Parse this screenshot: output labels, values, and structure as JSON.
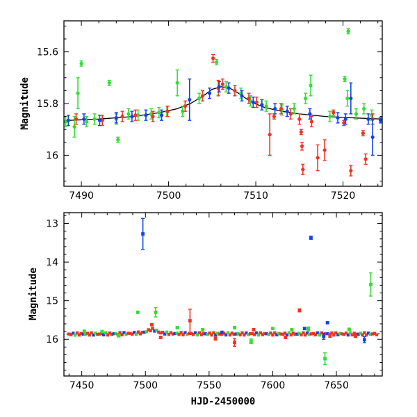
{
  "colors": {
    "green": "#33dd33",
    "red": "#ee3322",
    "blue": "#1144ee",
    "model": "#000000",
    "frame": "#000000"
  },
  "chart_data": [
    {
      "type": "scatter",
      "panel": "top",
      "xlabel": "",
      "ylabel": "Magnitude",
      "xlim": [
        7488,
        7524.5
      ],
      "ylim": [
        16.12,
        15.48
      ],
      "y_inverted": true,
      "xticks": [
        7490,
        7500,
        7510,
        7520
      ],
      "xtick_labels": [
        "7490",
        "7500",
        "7510",
        "7520"
      ],
      "yticks": [
        15.6,
        15.8,
        16.0
      ],
      "ytick_labels": [
        "15.6",
        "15.8",
        "16"
      ],
      "model_curve": {
        "color": "model",
        "x": [
          7488.5,
          7492,
          7496,
          7499,
          7501,
          7502.5,
          7504,
          7505,
          7506,
          7507,
          7508,
          7509.5,
          7511,
          7513,
          7515,
          7518,
          7521,
          7524.5
        ],
        "y": [
          15.865,
          15.86,
          15.85,
          15.835,
          15.82,
          15.8,
          15.77,
          15.745,
          15.735,
          15.74,
          15.76,
          15.795,
          15.815,
          15.83,
          15.84,
          15.85,
          15.855,
          15.86
        ]
      },
      "series": [
        {
          "color": "green",
          "points": [
            {
              "x": 7488.2,
              "y": 15.87,
              "err": 0.02
            },
            {
              "x": 7489.2,
              "y": 15.89,
              "err": 0.04
            },
            {
              "x": 7489.6,
              "y": 15.76,
              "err": 0.06
            },
            {
              "x": 7490.0,
              "y": 15.645,
              "err": 0.01
            },
            {
              "x": 7490.6,
              "y": 15.87,
              "err": 0.02
            },
            {
              "x": 7491.5,
              "y": 15.86,
              "err": 0.02
            },
            {
              "x": 7493.2,
              "y": 15.72,
              "err": 0.01
            },
            {
              "x": 7494.0,
              "y": 15.86,
              "err": 0.02
            },
            {
              "x": 7494.2,
              "y": 15.94,
              "err": 0.01
            },
            {
              "x": 7495.4,
              "y": 15.84,
              "err": 0.02
            },
            {
              "x": 7496.5,
              "y": 15.845,
              "err": 0.02
            },
            {
              "x": 7498.0,
              "y": 15.84,
              "err": 0.02
            },
            {
              "x": 7498.9,
              "y": 15.835,
              "err": 0.02
            },
            {
              "x": 7499.8,
              "y": 15.83,
              "err": 0.02
            },
            {
              "x": 7501.0,
              "y": 15.72,
              "err": 0.05
            },
            {
              "x": 7501.6,
              "y": 15.83,
              "err": 0.02
            },
            {
              "x": 7503.5,
              "y": 15.78,
              "err": 0.02
            },
            {
              "x": 7505.5,
              "y": 15.64,
              "err": 0.01
            },
            {
              "x": 7506.6,
              "y": 15.735,
              "err": 0.02
            },
            {
              "x": 7508.3,
              "y": 15.76,
              "err": 0.02
            },
            {
              "x": 7509.4,
              "y": 15.79,
              "err": 0.02
            },
            {
              "x": 7511.2,
              "y": 15.81,
              "err": 0.02
            },
            {
              "x": 7513.0,
              "y": 15.825,
              "err": 0.02
            },
            {
              "x": 7514.4,
              "y": 15.82,
              "err": 0.02
            },
            {
              "x": 7515.7,
              "y": 15.78,
              "err": 0.02
            },
            {
              "x": 7516.3,
              "y": 15.73,
              "err": 0.04
            },
            {
              "x": 7518.5,
              "y": 15.85,
              "err": 0.02
            },
            {
              "x": 7520.2,
              "y": 15.705,
              "err": 0.01
            },
            {
              "x": 7520.5,
              "y": 15.78,
              "err": 0.03
            },
            {
              "x": 7520.6,
              "y": 15.52,
              "err": 0.01
            },
            {
              "x": 7521.5,
              "y": 15.84,
              "err": 0.02
            },
            {
              "x": 7522.4,
              "y": 15.82,
              "err": 0.02
            },
            {
              "x": 7523.3,
              "y": 15.845,
              "err": 0.02
            }
          ]
        },
        {
          "color": "red",
          "points": [
            {
              "x": 7489.4,
              "y": 15.86,
              "err": 0.02
            },
            {
              "x": 7492.4,
              "y": 15.865,
              "err": 0.02
            },
            {
              "x": 7494.7,
              "y": 15.85,
              "err": 0.02
            },
            {
              "x": 7496.2,
              "y": 15.845,
              "err": 0.02
            },
            {
              "x": 7498.2,
              "y": 15.85,
              "err": 0.02
            },
            {
              "x": 7499.9,
              "y": 15.83,
              "err": 0.02
            },
            {
              "x": 7501.9,
              "y": 15.81,
              "err": 0.02
            },
            {
              "x": 7503.9,
              "y": 15.77,
              "err": 0.02
            },
            {
              "x": 7505.1,
              "y": 15.625,
              "err": 0.015
            },
            {
              "x": 7505.7,
              "y": 15.74,
              "err": 0.03
            },
            {
              "x": 7506.2,
              "y": 15.725,
              "err": 0.02
            },
            {
              "x": 7507.6,
              "y": 15.75,
              "err": 0.02
            },
            {
              "x": 7509.2,
              "y": 15.78,
              "err": 0.02
            },
            {
              "x": 7510.1,
              "y": 15.795,
              "err": 0.02
            },
            {
              "x": 7511.6,
              "y": 15.92,
              "err": 0.08
            },
            {
              "x": 7512.1,
              "y": 15.85,
              "err": 0.01
            },
            {
              "x": 7512.9,
              "y": 15.82,
              "err": 0.02
            },
            {
              "x": 7514.0,
              "y": 15.84,
              "err": 0.02
            },
            {
              "x": 7515.0,
              "y": 15.86,
              "err": 0.02
            },
            {
              "x": 7515.2,
              "y": 15.91,
              "err": 0.01
            },
            {
              "x": 7515.3,
              "y": 15.965,
              "err": 0.015
            },
            {
              "x": 7515.4,
              "y": 16.055,
              "err": 0.02
            },
            {
              "x": 7516.4,
              "y": 15.87,
              "err": 0.02
            },
            {
              "x": 7517.1,
              "y": 16.01,
              "err": 0.05
            },
            {
              "x": 7517.9,
              "y": 15.98,
              "err": 0.04
            },
            {
              "x": 7518.9,
              "y": 15.835,
              "err": 0.01
            },
            {
              "x": 7520.1,
              "y": 15.875,
              "err": 0.01
            },
            {
              "x": 7520.9,
              "y": 16.06,
              "err": 0.02
            },
            {
              "x": 7522.3,
              "y": 15.915,
              "err": 0.01
            },
            {
              "x": 7522.6,
              "y": 16.015,
              "err": 0.02
            },
            {
              "x": 7523.4,
              "y": 15.86,
              "err": 0.02
            }
          ]
        },
        {
          "color": "blue",
          "points": [
            {
              "x": 7488.5,
              "y": 15.865,
              "err": 0.02
            },
            {
              "x": 7490.3,
              "y": 15.86,
              "err": 0.02
            },
            {
              "x": 7492.1,
              "y": 15.865,
              "err": 0.02
            },
            {
              "x": 7494.0,
              "y": 15.855,
              "err": 0.02
            },
            {
              "x": 7495.8,
              "y": 15.85,
              "err": 0.02
            },
            {
              "x": 7497.4,
              "y": 15.845,
              "err": 0.02
            },
            {
              "x": 7499.2,
              "y": 15.845,
              "err": 0.02
            },
            {
              "x": 7502.4,
              "y": 15.785,
              "err": 0.08
            },
            {
              "x": 7504.7,
              "y": 15.76,
              "err": 0.02
            },
            {
              "x": 7505.8,
              "y": 15.735,
              "err": 0.02
            },
            {
              "x": 7506.9,
              "y": 15.74,
              "err": 0.02
            },
            {
              "x": 7508.4,
              "y": 15.77,
              "err": 0.02
            },
            {
              "x": 7509.7,
              "y": 15.795,
              "err": 0.02
            },
            {
              "x": 7510.7,
              "y": 15.805,
              "err": 0.02
            },
            {
              "x": 7512.2,
              "y": 15.82,
              "err": 0.02
            },
            {
              "x": 7513.6,
              "y": 15.83,
              "err": 0.02
            },
            {
              "x": 7516.2,
              "y": 15.84,
              "err": 0.02
            },
            {
              "x": 7519.4,
              "y": 15.855,
              "err": 0.02
            },
            {
              "x": 7520.3,
              "y": 15.86,
              "err": 0.02
            },
            {
              "x": 7520.9,
              "y": 15.78,
              "err": 0.06
            },
            {
              "x": 7522.9,
              "y": 15.86,
              "err": 0.02
            },
            {
              "x": 7523.4,
              "y": 15.93,
              "err": 0.07
            },
            {
              "x": 7524.3,
              "y": 15.865,
              "err": 0.01
            }
          ]
        }
      ]
    },
    {
      "type": "scatter",
      "panel": "bottom",
      "xlabel": "HJD-2450000",
      "ylabel": "Magnitude",
      "xlim": [
        7436,
        7686
      ],
      "ylim": [
        16.95,
        12.72
      ],
      "y_inverted": true,
      "xticks": [
        7450,
        7500,
        7550,
        7600,
        7650
      ],
      "xtick_labels": [
        "7450",
        "7500",
        "7550",
        "7600",
        "7650"
      ],
      "yticks": [
        13,
        14,
        15,
        16
      ],
      "ytick_labels": [
        "13",
        "14",
        "15",
        "16"
      ],
      "model_curve": {
        "color": "model",
        "x": [
          7438,
          7470,
          7490,
          7498,
          7502,
          7505,
          7508,
          7512,
          7520,
          7550,
          7600,
          7650,
          7684
        ],
        "y": [
          15.865,
          15.86,
          15.85,
          15.83,
          15.78,
          15.735,
          15.77,
          15.83,
          15.85,
          15.86,
          15.86,
          15.86,
          15.86
        ]
      },
      "series": [
        {
          "color": "green",
          "points": [
            {
              "x": 7452,
              "y": 15.79,
              "err": 0.02
            },
            {
              "x": 7466,
              "y": 15.8,
              "err": 0.02
            },
            {
              "x": 7479,
              "y": 15.9,
              "err": 0.04
            },
            {
              "x": 7494,
              "y": 15.3,
              "err": 0.03
            },
            {
              "x": 7508,
              "y": 15.3,
              "err": 0.12
            },
            {
              "x": 7525,
              "y": 15.7,
              "err": 0.03
            },
            {
              "x": 7545,
              "y": 15.75,
              "err": 0.03
            },
            {
              "x": 7570,
              "y": 15.7,
              "err": 0.03
            },
            {
              "x": 7583,
              "y": 16.05,
              "err": 0.06
            },
            {
              "x": 7600,
              "y": 15.72,
              "err": 0.02
            },
            {
              "x": 7615,
              "y": 15.75,
              "err": 0.02
            },
            {
              "x": 7628,
              "y": 15.73,
              "err": 0.05
            },
            {
              "x": 7641,
              "y": 16.5,
              "err": 0.15
            },
            {
              "x": 7660,
              "y": 15.74,
              "err": 0.02
            },
            {
              "x": 7677,
              "y": 14.58,
              "err": 0.3
            }
          ]
        },
        {
          "color": "red",
          "points": [
            {
              "x": 7505,
              "y": 15.62,
              "err": 0.02
            },
            {
              "x": 7512,
              "y": 15.95,
              "err": 0.03
            },
            {
              "x": 7535,
              "y": 15.52,
              "err": 0.3
            },
            {
              "x": 7555,
              "y": 15.98,
              "err": 0.04
            },
            {
              "x": 7570,
              "y": 16.08,
              "err": 0.1
            },
            {
              "x": 7585,
              "y": 15.75,
              "err": 0.02
            },
            {
              "x": 7610,
              "y": 15.95,
              "err": 0.03
            },
            {
              "x": 7621,
              "y": 15.25,
              "err": 0.04
            },
            {
              "x": 7645,
              "y": 15.9,
              "err": 0.05
            },
            {
              "x": 7665,
              "y": 15.92,
              "err": 0.03
            }
          ]
        },
        {
          "color": "blue",
          "points": [
            {
              "x": 7498,
              "y": 13.27,
              "err": 0.4
            },
            {
              "x": 7560,
              "y": 15.82,
              "err": 0.03
            },
            {
              "x": 7625,
              "y": 15.72,
              "err": 0.03
            },
            {
              "x": 7630,
              "y": 13.37,
              "err": 0.04
            },
            {
              "x": 7640,
              "y": 15.92,
              "err": 0.08
            },
            {
              "x": 7643,
              "y": 15.57,
              "err": 0.02
            },
            {
              "x": 7672,
              "y": 16.01,
              "err": 0.08
            }
          ]
        }
      ]
    }
  ]
}
